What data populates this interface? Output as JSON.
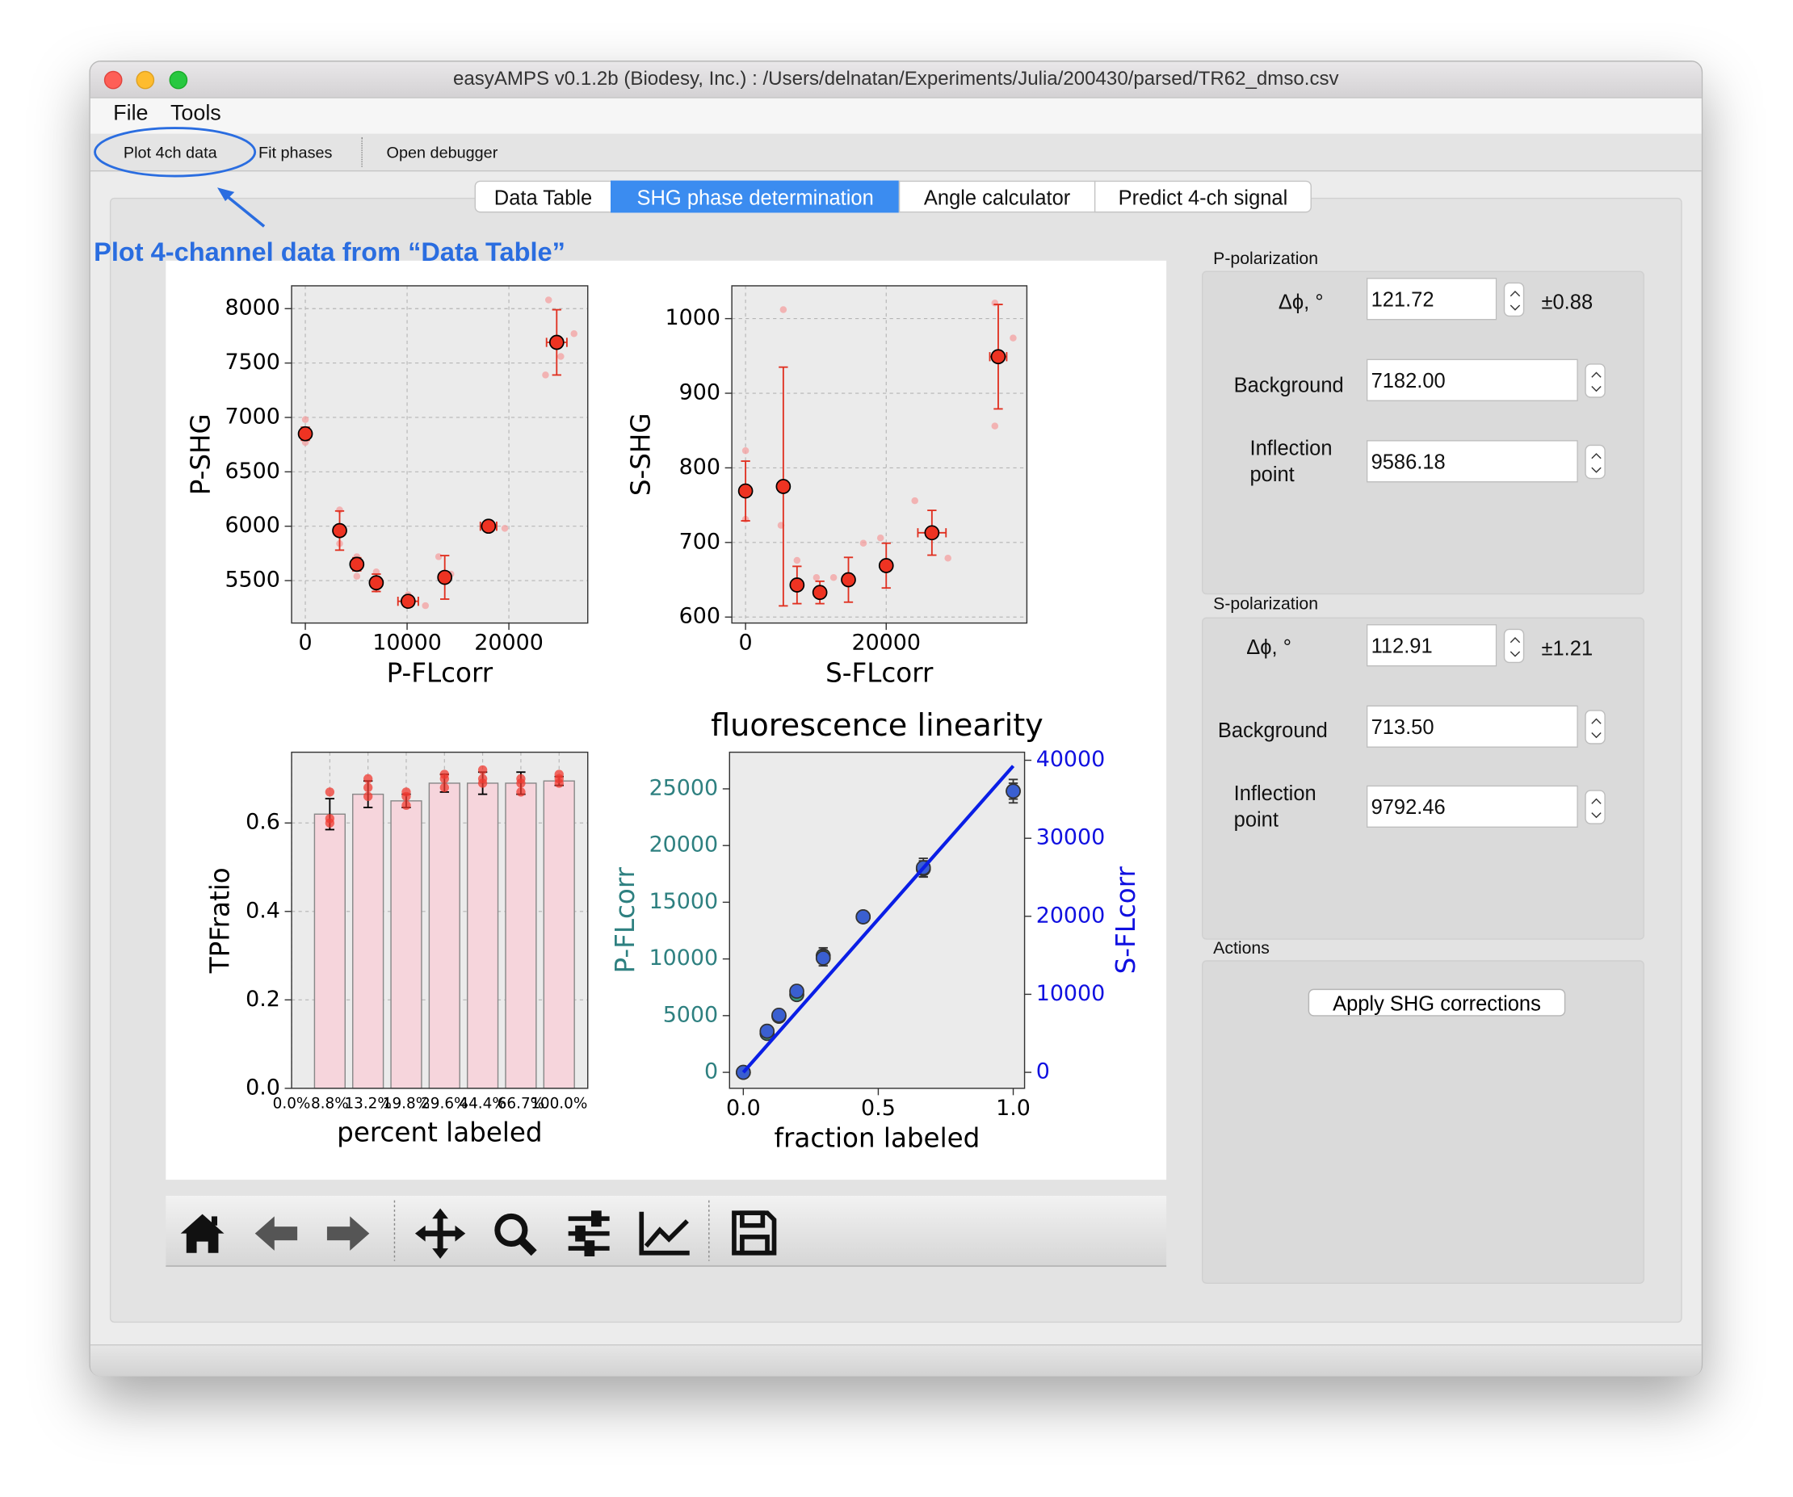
{
  "window": {
    "title": "easyAMPS v0.1.2b (Biodesy, Inc.) : /Users/delnatan/Experiments/Julia/200430/parsed/TR62_dmso.csv"
  },
  "menu": [
    "File",
    "Tools"
  ],
  "toolbar": [
    "Plot 4ch data",
    "Fit phases",
    "Open debugger"
  ],
  "tabs": [
    "Data Table",
    "SHG phase determination",
    "Angle calculator",
    "Predict 4-ch signal"
  ],
  "annotation": "Plot 4-channel data from “Data Table”",
  "panels": [
    {
      "title": "P-polarization",
      "fields": [
        {
          "label": "Δϕ, °",
          "value": "121.72",
          "error": "±0.88"
        },
        {
          "label": "Background",
          "value": "7182.00"
        },
        {
          "label": "Inflection point",
          "value": "9586.18"
        }
      ]
    },
    {
      "title": "S-polarization",
      "fields": [
        {
          "label": "Δϕ, °",
          "value": "112.91",
          "error": "±1.21"
        },
        {
          "label": "Background",
          "value": "713.50"
        },
        {
          "label": "Inflection point",
          "value": "9792.46"
        }
      ]
    }
  ],
  "actions": {
    "title": "Actions",
    "button": "Apply SHG corrections"
  },
  "chart_data": [
    {
      "type": "scatter",
      "xlabel": "P-FLcorr",
      "ylabel": "P-SHG",
      "xlim": [
        -1350,
        27750
      ],
      "ylim": [
        5110,
        8210
      ],
      "xticks": [
        0,
        10000,
        20000
      ],
      "yticks": [
        5500,
        6000,
        6500,
        7000,
        7500,
        8000
      ],
      "grid": true,
      "series": [
        {
          "color": "#f4a0a0",
          "marker_size": 3,
          "x": [
            0,
            0,
            3370,
            3370,
            5060,
            5060,
            6970,
            6970,
            10100,
            11800,
            13100,
            14300,
            19600,
            23900,
            26400,
            23600,
            25100
          ],
          "values": [
            6980,
            6770,
            6150,
            5840,
            5720,
            5540,
            5580,
            5420,
            5370,
            5270,
            5720,
            5560,
            5980,
            8080,
            7770,
            7390,
            7560
          ]
        },
        {
          "color": "#ee3322",
          "edge_color": "#000000",
          "err_color": "#e03020",
          "marker_size": 6,
          "x": [
            0,
            3370,
            5060,
            6970,
            10100,
            13700,
            18000,
            24700
          ],
          "values": [
            6850,
            5960,
            5650,
            5480,
            5310,
            5530,
            6000,
            7690
          ],
          "yerr": [
            60,
            180,
            60,
            80,
            50,
            200,
            30,
            300
          ],
          "xerr": [
            0,
            0,
            0,
            0,
            1000,
            0,
            800,
            1000
          ]
        }
      ]
    },
    {
      "type": "scatter",
      "xlabel": "S-FLcorr",
      "ylabel": "S-SHG",
      "xlim": [
        -1950,
        40000
      ],
      "ylim": [
        592,
        1044
      ],
      "xticks": [
        0,
        20000
      ],
      "yticks": [
        600,
        700,
        800,
        900,
        1000
      ],
      "grid": true,
      "series": [
        {
          "color": "#f4a0a0",
          "marker_size": 3,
          "x": [
            0,
            0,
            5370,
            5040,
            7320,
            10080,
            12520,
            16750,
            19190,
            24070,
            28780,
            35450,
            38050,
            35450
          ],
          "values": [
            823,
            731,
            1012,
            723,
            676,
            653,
            653,
            699,
            706,
            756,
            679,
            1021,
            974,
            856
          ]
        },
        {
          "color": "#ee3322",
          "edge_color": "#000000",
          "err_color": "#e03020",
          "marker_size": 6,
          "x": [
            0,
            5370,
            7320,
            10570,
            14630,
            20000,
            26500,
            35930
          ],
          "values": [
            769,
            775,
            643,
            633,
            650,
            669,
            713,
            949
          ],
          "yerr": [
            40,
            160,
            25,
            15,
            30,
            30,
            30,
            70
          ],
          "xerr": [
            0,
            0,
            0,
            0,
            0,
            0,
            2000,
            1200
          ]
        }
      ]
    },
    {
      "type": "bar",
      "xlabel": "percent labeled",
      "ylabel": "TPFratio",
      "categories": [
        "0.0%",
        "8.8%",
        "13.2%",
        "19.8%",
        "29.6%",
        "44.4%",
        "66.7%",
        "100.0%"
      ],
      "values": [
        null,
        0.62,
        0.665,
        0.65,
        0.69,
        0.69,
        0.69,
        0.695
      ],
      "yerr": [
        null,
        0.035,
        0.03,
        0.015,
        0.02,
        0.025,
        0.025,
        0.01
      ],
      "color": "#f6d5dc",
      "edge_color": "#888888",
      "err_color": "#000000",
      "ylim": [
        0,
        0.76
      ],
      "yticks": [
        {
          "value": 0,
          "label": "0.0"
        },
        0.2,
        0.4,
        0.6
      ],
      "grid": true,
      "series": [
        {
          "color": "#f03a30",
          "marker_size": 4,
          "x": [
            1,
            1,
            1,
            2,
            2,
            2,
            3,
            3,
            3,
            4,
            4,
            4,
            5,
            5,
            5,
            6,
            6,
            6,
            7,
            7,
            7
          ],
          "values": [
            0.6,
            0.61,
            0.67,
            0.66,
            0.68,
            0.7,
            0.64,
            0.66,
            0.67,
            0.68,
            0.7,
            0.71,
            0.69,
            0.7,
            0.72,
            0.67,
            0.69,
            0.7,
            0.69,
            0.7,
            0.71
          ]
        }
      ]
    },
    {
      "type": "line",
      "title": "fluorescence linearity",
      "xlabel": "fraction labeled",
      "ylabel": "P-FLcorr",
      "y2label": "S-FLcorr",
      "y_color": "#2e8080",
      "y2_color": "#1010e0",
      "xlim": [
        -0.051,
        1.042
      ],
      "ylim": [
        -1410,
        28230
      ],
      "y2lim": [
        -2050,
        41030
      ],
      "xticks": [
        {
          "value": 0,
          "label": "0.0"
        },
        0.5,
        {
          "value": 1,
          "label": "1.0"
        }
      ],
      "yticks": [
        0,
        5000,
        10000,
        15000,
        20000,
        25000
      ],
      "y2ticks": [
        0,
        10000,
        20000,
        30000,
        40000
      ],
      "series": [
        {
          "style": "points",
          "color": "#3a9a7a",
          "edge_color": "#333333",
          "err_color": "#333333",
          "marker_size": 6,
          "x": [
            0,
            0.088,
            0.132,
            0.198,
            0.296,
            0.444,
            0.667,
            1.0
          ],
          "values": [
            0,
            3430,
            4940,
            6860,
            10280,
            13710,
            17950,
            24800
          ],
          "yerr": [
            0,
            300,
            300,
            400,
            700,
            400,
            700,
            700
          ]
        },
        {
          "style": "points",
          "axis": "y2",
          "color": "#3a5fd0",
          "edge_color": "#333333",
          "err_color": "#333333",
          "marker_size": 6,
          "x": [
            0,
            0.088,
            0.132,
            0.198,
            0.296,
            0.444,
            0.667,
            1.0
          ],
          "values": [
            0,
            5270,
            7320,
            10400,
            14650,
            19930,
            26230,
            36040
          ],
          "yerr": [
            0,
            500,
            500,
            700,
            1000,
            700,
            1200,
            1500
          ]
        },
        {
          "style": "line",
          "axis": "y2",
          "color": "#0a1ee6",
          "x": [
            0,
            1.0
          ],
          "values": [
            0,
            39270
          ]
        }
      ]
    }
  ]
}
